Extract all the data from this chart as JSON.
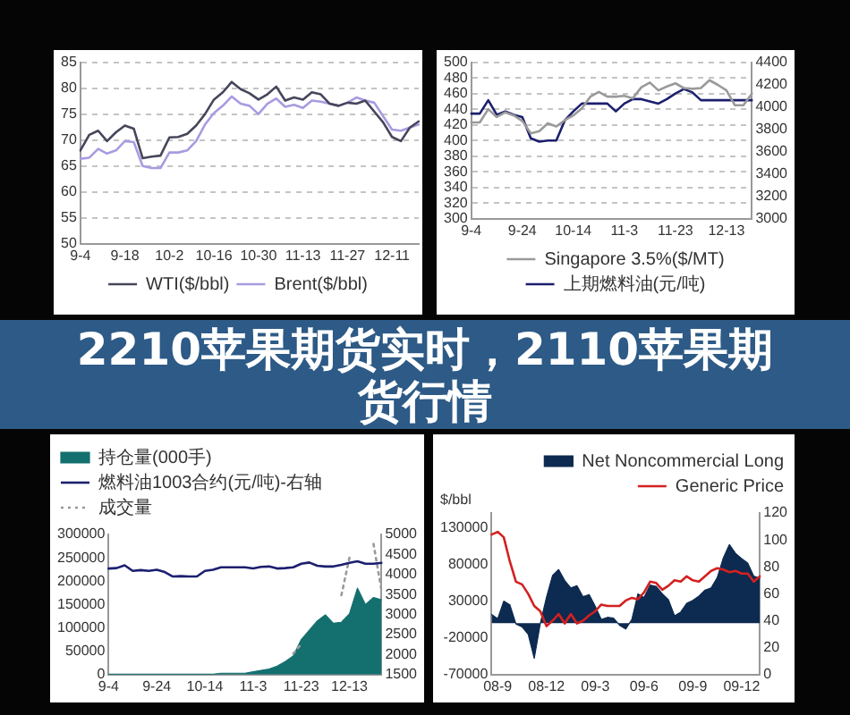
{
  "chart_data": [
    {
      "type": "line",
      "categories": [
        "9-4",
        null,
        null,
        null,
        null,
        "9-18",
        null,
        null,
        null,
        null,
        "10-2",
        null,
        null,
        null,
        null,
        "10-16",
        null,
        null,
        null,
        null,
        "10-30",
        null,
        null,
        null,
        null,
        "11-13",
        null,
        null,
        null,
        null,
        "11-27",
        null,
        null,
        null,
        null,
        "12-11",
        null,
        null,
        null
      ],
      "series": [
        {
          "name": "WTI($/bbl)",
          "color": "#45465a",
          "values": [
            68.0,
            71.0,
            71.8,
            69.8,
            71.5,
            72.8,
            72.2,
            66.5,
            66.8,
            67.0,
            70.5,
            70.6,
            71.2,
            72.8,
            75.0,
            77.8,
            79.2,
            81.2,
            79.8,
            79.0,
            77.8,
            78.8,
            80.3,
            77.6,
            78.2,
            77.8,
            79.2,
            78.8,
            77.0,
            76.6,
            77.2,
            77.0,
            77.6,
            75.5,
            73.4,
            70.6,
            69.8,
            72.4,
            73.6
          ]
        },
        {
          "name": "Brent($/bbl)",
          "color": "#a99be0",
          "values": [
            66.4,
            66.6,
            68.3,
            67.4,
            68.0,
            69.8,
            69.6,
            65.0,
            64.6,
            64.6,
            67.6,
            67.6,
            68.0,
            69.8,
            73.0,
            75.2,
            76.6,
            78.4,
            77.0,
            76.6,
            75.0,
            77.0,
            78.0,
            76.4,
            76.8,
            76.2,
            77.6,
            77.4,
            77.0,
            76.6,
            77.2,
            78.2,
            77.6,
            77.2,
            74.6,
            72.0,
            71.8,
            72.4,
            73.0
          ]
        }
      ],
      "ylim": [
        50,
        85
      ],
      "yticks": [
        50,
        55,
        60,
        65,
        70,
        75,
        80,
        85
      ],
      "grid": "y",
      "legend": "bottom"
    },
    {
      "type": "line",
      "categories": [
        "9-4",
        null,
        null,
        null,
        null,
        null,
        "9-24",
        null,
        null,
        null,
        null,
        null,
        "10-14",
        null,
        null,
        null,
        null,
        null,
        "11-3",
        null,
        null,
        null,
        null,
        null,
        "11-23",
        null,
        null,
        null,
        null,
        null,
        "12-13",
        null,
        null,
        null
      ],
      "series": [
        {
          "name": "Singapore 3.5%($/MT)",
          "color": "#9a9a9a",
          "values": [
            423,
            423,
            440,
            430,
            436,
            432,
            425,
            409,
            412,
            422,
            418,
            426,
            432,
            441,
            456,
            462,
            456,
            456,
            457,
            454,
            468,
            474,
            464,
            469,
            473,
            467,
            466,
            467,
            477,
            471,
            464,
            445,
            445,
            460
          ]
        },
        {
          "name": "上期燃料油(元/吨)",
          "color": "#1c1f6e",
          "axis": "y2",
          "values": [
            3940,
            3940,
            4060,
            3930,
            3960,
            3930,
            3910,
            3720,
            3690,
            3700,
            3700,
            3880,
            3960,
            4030,
            4030,
            4030,
            4030,
            3960,
            4030,
            4070,
            4070,
            4050,
            4030,
            4070,
            4120,
            4160,
            4130,
            4060,
            4060,
            4060,
            4060,
            4060,
            4060,
            4060
          ]
        }
      ],
      "ylim": [
        300,
        500
      ],
      "yticks": [
        300,
        320,
        340,
        360,
        380,
        400,
        420,
        440,
        460,
        480,
        500
      ],
      "y2lim": [
        3000,
        4400
      ],
      "y2ticks": [
        3000,
        3200,
        3400,
        3600,
        3800,
        4000,
        4200,
        4400
      ],
      "grid": "y",
      "legend": "bottom"
    },
    {
      "type": "other",
      "title": "2210苹果期货实时，2110苹果期货行情"
    },
    {
      "type": "line",
      "categories": [
        "9-4",
        null,
        null,
        null,
        null,
        null,
        "9-24",
        null,
        null,
        null,
        null,
        null,
        "10-14",
        null,
        null,
        null,
        null,
        null,
        "11-3",
        null,
        null,
        null,
        null,
        null,
        "11-23",
        null,
        null,
        null,
        null,
        null,
        "12-13",
        null,
        null,
        null,
        null
      ],
      "series": [
        {
          "type": "area",
          "name": "持仓量(000手)",
          "color": "#13706f",
          "values": [
            1000,
            1000,
            1000,
            1000,
            1000,
            1000,
            1000,
            1000,
            1000,
            1000,
            1000,
            1000,
            1000,
            1000,
            3000,
            3000,
            3000,
            3000,
            6000,
            9000,
            12000,
            18000,
            28000,
            40000,
            75000,
            95000,
            115000,
            128000,
            110000,
            112000,
            130000,
            185000,
            150000,
            165000,
            160000
          ]
        },
        {
          "type": "line",
          "name": "燃料油1003合约(元/吨)-右轴",
          "color": "#1c1f6e",
          "axis": "y2",
          "values": [
            4150,
            4160,
            4230,
            4090,
            4110,
            4090,
            4120,
            4060,
            3950,
            3960,
            3950,
            3950,
            4090,
            4120,
            4180,
            4180,
            4180,
            4180,
            4150,
            4190,
            4200,
            4150,
            4160,
            4180,
            4270,
            4300,
            4220,
            4200,
            4200,
            4240,
            4290,
            4330,
            4270,
            4270,
            4290
          ]
        },
        {
          "type": "line",
          "name": "成交量",
          "color": "#9a9a9a",
          "line_style": "dotted",
          "values": [
            null,
            null,
            null,
            null,
            null,
            null,
            null,
            null,
            null,
            null,
            null,
            null,
            null,
            null,
            null,
            null,
            null,
            null,
            null,
            null,
            null,
            null,
            null,
            45000,
            65000,
            null,
            null,
            null,
            null,
            170000,
            250000,
            null,
            null,
            280000,
            180000
          ]
        }
      ],
      "ylim": [
        0,
        300000
      ],
      "yticks": [
        0,
        50000,
        100000,
        150000,
        200000,
        250000,
        300000
      ],
      "y2lim": [
        1500,
        5000
      ],
      "y2ticks": [
        1500,
        2000,
        2500,
        3000,
        3500,
        4000,
        4500,
        5000
      ],
      "legend": "top left"
    },
    {
      "type": "line",
      "annotations": [
        "$/bbl"
      ],
      "categories": [
        null,
        "08-9",
        null,
        null,
        null,
        null,
        null,
        null,
        null,
        "08-12",
        null,
        null,
        null,
        null,
        null,
        null,
        null,
        "09-3",
        null,
        null,
        null,
        null,
        null,
        null,
        null,
        "09-6",
        null,
        null,
        null,
        null,
        null,
        null,
        null,
        "09-9",
        null,
        null,
        null,
        null,
        null,
        null,
        null,
        "09-12",
        null,
        null,
        null
      ],
      "series": [
        {
          "type": "area",
          "name": "Net Noncommercial Long",
          "color": "#0d2a50",
          "values": [
            12000,
            6000,
            30000,
            25000,
            -1000,
            -5000,
            -15000,
            -48000,
            0,
            35000,
            65000,
            73000,
            58000,
            48000,
            51000,
            36000,
            39000,
            23000,
            5000,
            8000,
            7000,
            -3000,
            -8000,
            5000,
            40000,
            35000,
            52000,
            50000,
            40000,
            32000,
            10000,
            15000,
            27000,
            31000,
            37000,
            45000,
            48000,
            62000,
            89000,
            107000,
            95000,
            88000,
            82000,
            64000,
            61000
          ]
        },
        {
          "type": "line",
          "name": "Generic Price",
          "color": "#d42020",
          "axis": "y2",
          "values": [
            104,
            106,
            102,
            84,
            69,
            67,
            60,
            51,
            47,
            36,
            40,
            45,
            38,
            45,
            38,
            40,
            44,
            47,
            52,
            51,
            51,
            51,
            55,
            57,
            56,
            61,
            69,
            68,
            63,
            66,
            70,
            69,
            73,
            70,
            69,
            73,
            77,
            79,
            78,
            76,
            77,
            75,
            75,
            69,
            73
          ]
        }
      ],
      "ylim": [
        -70000,
        150000
      ],
      "yticks": [
        -70000,
        -20000,
        30000,
        80000,
        130000
      ],
      "y2lim": [
        0,
        120
      ],
      "y2ticks": [
        0,
        20,
        40,
        60,
        80,
        100,
        120
      ],
      "legend": "top right"
    }
  ]
}
